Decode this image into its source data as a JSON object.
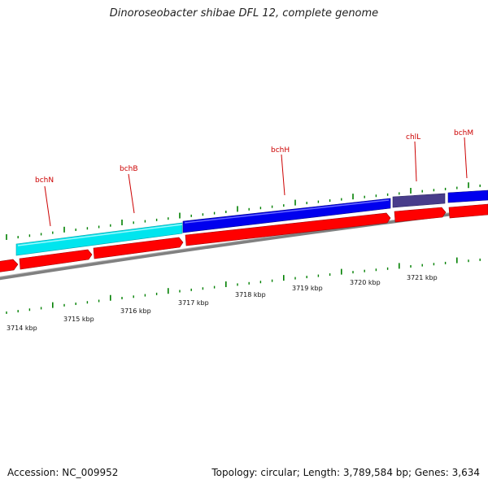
{
  "title": "Dinoroseobacter shibae DFL 12, complete genome",
  "footer": {
    "accession": "Accession: NC_009952",
    "summary": "Topology: circular; Length: 3,789,584 bp; Genes: 3,634"
  },
  "gene_labels": [
    "bchN",
    "bchB",
    "bchH",
    "chlL",
    "bchM"
  ],
  "kbp_labels": [
    "3714 kbp",
    "3715 kbp",
    "3716 kbp",
    "3717 kbp",
    "3718 kbp",
    "3719 kbp",
    "3720 kbp",
    "3721 kbp"
  ],
  "colors": {
    "cds_forward": "#ff0000",
    "bchN_bchB": "#00e5ee",
    "bchH": "#0000ee",
    "chlL": "#483d8b",
    "bchM": "#0000ee",
    "tick": "#008000",
    "label_line": "#cc0000",
    "backbone": "#808080"
  }
}
